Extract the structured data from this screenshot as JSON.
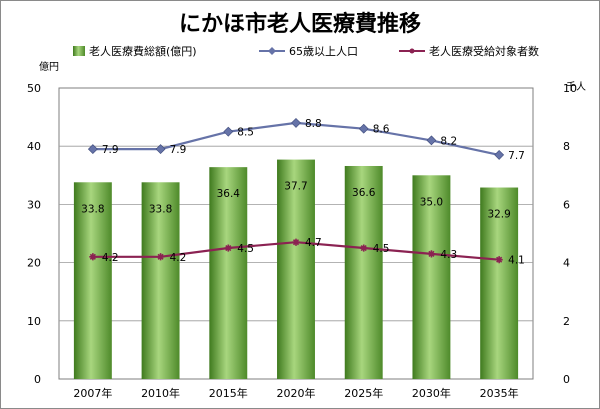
{
  "chart_data": {
    "type": "bar",
    "title": "にかほ市老人医療費推移",
    "categories": [
      "2007年",
      "2010年",
      "2015年",
      "2020年",
      "2025年",
      "2030年",
      "2035年"
    ],
    "series": [
      {
        "name": "老人医療費総額(億円)",
        "kind": "bar",
        "axis": "left",
        "color": "#7ab648",
        "values": [
          33.8,
          33.8,
          36.4,
          37.7,
          36.6,
          35.0,
          32.9
        ],
        "labels": [
          "33.8",
          "33.8",
          "36.4",
          "37.7",
          "36.6",
          "35.0",
          "32.9"
        ]
      },
      {
        "name": "65歳以上人口",
        "kind": "line",
        "axis": "right",
        "color": "#6673a8",
        "marker": "diamond",
        "values": [
          7.9,
          7.9,
          8.5,
          8.8,
          8.6,
          8.2,
          7.7
        ],
        "labels": [
          "7.9",
          "7.9",
          "8.5",
          "8.8",
          "8.6",
          "8.2",
          "7.7"
        ]
      },
      {
        "name": "老人医療受給対象者数",
        "kind": "line",
        "axis": "right",
        "color": "#8b2252",
        "marker": "star",
        "values": [
          4.2,
          4.2,
          4.5,
          4.7,
          4.5,
          4.3,
          4.1
        ],
        "labels": [
          "4.2",
          "4.2",
          "4.5",
          "4.7",
          "4.5",
          "4.3",
          "4.1"
        ]
      }
    ],
    "y_left": {
      "label": "億円",
      "min": 0,
      "max": 50,
      "ticks": [
        "0",
        "10",
        "20",
        "30",
        "40",
        "50"
      ]
    },
    "y_right": {
      "label": "千人",
      "min": 0,
      "max": 10,
      "ticks": [
        "0",
        "2",
        "4",
        "6",
        "8",
        "10"
      ]
    },
    "grid": true,
    "legend_position": "top"
  }
}
